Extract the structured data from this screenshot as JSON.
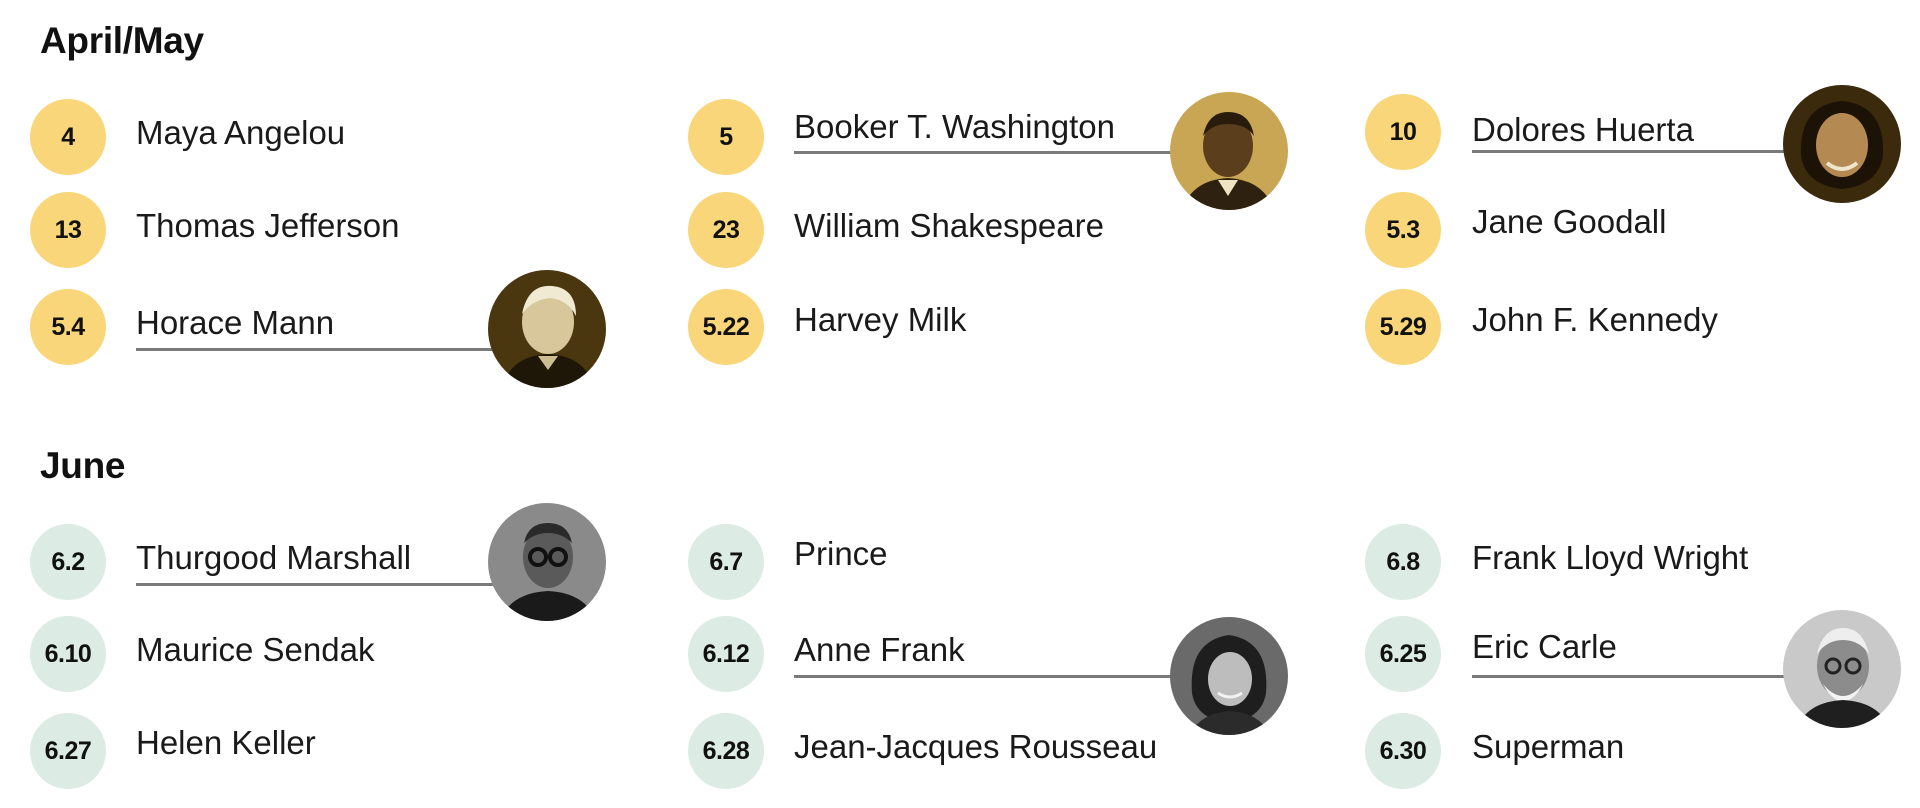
{
  "sections": {
    "april_may": {
      "title": "April/May",
      "entries": [
        {
          "date": "4",
          "name": "Maya Angelou"
        },
        {
          "date": "13",
          "name": "Thomas Jefferson"
        },
        {
          "date": "5.4",
          "name": "Horace Mann",
          "portrait": "portrait-sepia"
        },
        {
          "date": "5",
          "name": "Booker T. Washington",
          "portrait": "portrait-sepia"
        },
        {
          "date": "23",
          "name": "William Shakespeare"
        },
        {
          "date": "5.22",
          "name": "Harvey Milk"
        },
        {
          "date": "10",
          "name": "Dolores Huerta",
          "portrait": "portrait-sepia"
        },
        {
          "date": "5.3",
          "name": "Jane Goodall"
        },
        {
          "date": "5.29",
          "name": "John F. Kennedy"
        }
      ]
    },
    "june": {
      "title": "June",
      "entries": [
        {
          "date": "6.2",
          "name": "Thurgood Marshall",
          "portrait": "portrait-grayscale"
        },
        {
          "date": "6.10",
          "name": "Maurice Sendak"
        },
        {
          "date": "6.27",
          "name": "Helen Keller"
        },
        {
          "date": "6.7",
          "name": "Prince"
        },
        {
          "date": "6.12",
          "name": "Anne Frank",
          "portrait": "portrait-grayscale"
        },
        {
          "date": "6.28",
          "name": "Jean-Jacques Rousseau"
        },
        {
          "date": "6.8",
          "name": "Frank Lloyd Wright"
        },
        {
          "date": "6.25",
          "name": "Eric Carle",
          "portrait": "portrait-grayscale"
        },
        {
          "date": "6.30",
          "name": "Superman"
        }
      ]
    }
  },
  "colors": {
    "april_may_badge": "#f8d679",
    "june_badge": "#dcebe4",
    "rule": "#7a7a7a",
    "sepia_tone": "#5a4316",
    "grayscale_tone": "#3e3e3e"
  }
}
